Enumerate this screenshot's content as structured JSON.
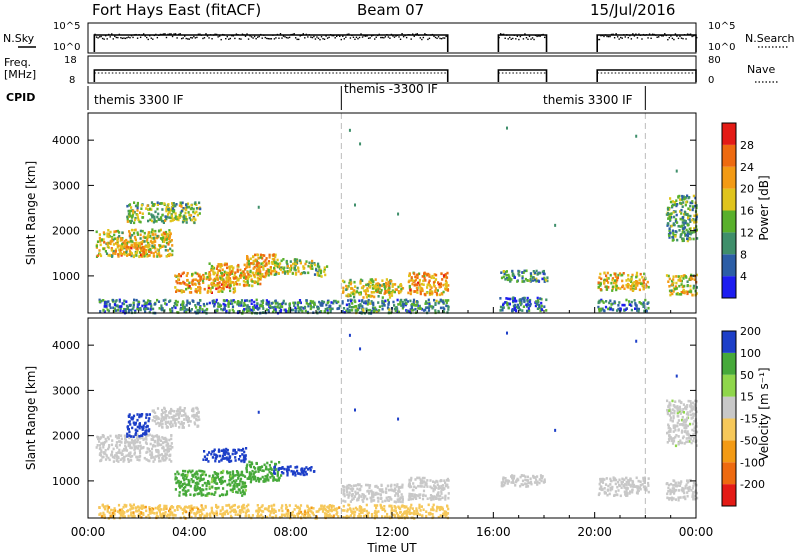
{
  "header": {
    "site": "Fort Hays East (fitACF)",
    "beam": "Beam 07",
    "date": "15/Jul/2016"
  },
  "strips": {
    "nsky_label": "N.Sky",
    "nsky_ticks": [
      "10^5",
      "10^0"
    ],
    "nsearch_label": "N.Search",
    "nsearch_ticks": [
      "10^5",
      "10^0"
    ],
    "freq_label": "Freq.",
    "freq_unit": "[MHz]",
    "freq_ticks": [
      "18",
      "8"
    ],
    "nave_label": "Nave",
    "nave_ticks": [
      "80",
      "0"
    ],
    "cpid_label": "CPID",
    "cpid_segments": [
      {
        "label": "themis 3300 IF",
        "start_h": 0.0,
        "end_h": 10.0
      },
      {
        "label": "themis -3300 IF",
        "start_h": 10.0,
        "end_h": 22.0
      },
      {
        "label": "themis 3300 IF",
        "start_h": 22.0,
        "end_h": 24.0
      }
    ],
    "cpid_boundaries_h": [
      10.0,
      22.0
    ],
    "data_segments_h": [
      [
        0.25,
        14.2
      ],
      [
        16.2,
        18.1
      ],
      [
        20.1,
        24.0
      ]
    ]
  },
  "chart_data": [
    {
      "type": "heatmap",
      "title": "",
      "quantity": "Power",
      "ylabel": "Slant Range [km]",
      "xlabel": "",
      "xlim_h": [
        0,
        24
      ],
      "ylim_km": [
        180,
        4600
      ],
      "yticks": [
        1000,
        2000,
        3000,
        4000
      ],
      "colorbar_label": "Power [dB]",
      "colorbar_ticks": [
        "4",
        "8",
        "12",
        "16",
        "20",
        "24",
        "28"
      ],
      "colorbar_colors": [
        "#1d1df0",
        "#2c5ea6",
        "#3f8f6b",
        "#59b02c",
        "#e0c41c",
        "#f39a14",
        "#ee6a10",
        "#e41b16"
      ],
      "regions": [
        {
          "t0": 0.3,
          "t1": 3.3,
          "r0": 1450,
          "r1": 2050,
          "v": 18
        },
        {
          "t0": 1.0,
          "t1": 2.4,
          "r0": 1450,
          "r1": 1750,
          "v": 22
        },
        {
          "t0": 1.5,
          "t1": 4.4,
          "r0": 2200,
          "r1": 2650,
          "v": 14
        },
        {
          "t0": 3.4,
          "t1": 5.8,
          "r0": 650,
          "r1": 1100,
          "v": 22
        },
        {
          "t0": 4.7,
          "t1": 6.8,
          "r0": 800,
          "r1": 1300,
          "v": 20
        },
        {
          "t0": 6.2,
          "t1": 7.4,
          "r0": 1000,
          "r1": 1500,
          "v": 21
        },
        {
          "t0": 7.3,
          "t1": 8.9,
          "r0": 1050,
          "r1": 1400,
          "v": 16
        },
        {
          "t0": 8.9,
          "t1": 9.4,
          "r0": 1000,
          "r1": 1300,
          "v": 13
        },
        {
          "t0": 0.4,
          "t1": 9.9,
          "r0": 200,
          "r1": 500,
          "v": 9
        },
        {
          "t0": 10.0,
          "t1": 12.0,
          "r0": 550,
          "r1": 950,
          "v": 17
        },
        {
          "t0": 11.2,
          "t1": 12.4,
          "r0": 650,
          "r1": 850,
          "v": 21
        },
        {
          "t0": 12.6,
          "t1": 14.2,
          "r0": 600,
          "r1": 1100,
          "v": 22
        },
        {
          "t0": 10.0,
          "t1": 14.2,
          "r0": 200,
          "r1": 500,
          "v": 10
        },
        {
          "t0": 16.2,
          "t1": 18.1,
          "r0": 900,
          "r1": 1150,
          "v": 10
        },
        {
          "t0": 16.2,
          "t1": 18.1,
          "r0": 250,
          "r1": 550,
          "v": 7
        },
        {
          "t0": 20.1,
          "t1": 22.1,
          "r0": 700,
          "r1": 1100,
          "v": 19
        },
        {
          "t0": 20.1,
          "t1": 22.1,
          "r0": 250,
          "r1": 500,
          "v": 9
        },
        {
          "t0": 22.8,
          "t1": 24.0,
          "r0": 600,
          "r1": 1050,
          "v": 18
        },
        {
          "t0": 22.8,
          "t1": 24.0,
          "r0": 1800,
          "r1": 2800,
          "v": 12
        }
      ]
    },
    {
      "type": "heatmap",
      "title": "",
      "quantity": "Velocity",
      "ylabel": "Slant Range [km]",
      "xlabel": "Time UT",
      "xlim_h": [
        0,
        24
      ],
      "ylim_km": [
        180,
        4600
      ],
      "yticks": [
        1000,
        2000,
        3000,
        4000
      ],
      "xticks": [
        "00:00",
        "04:00",
        "08:00",
        "12:00",
        "16:00",
        "20:00",
        "00:00"
      ],
      "colorbar_label": "Velocity [m s⁻¹]",
      "colorbar_ticks": [
        "-200",
        "-100",
        "-50",
        "-15",
        "15",
        "50",
        "100",
        "200"
      ],
      "colorbar_colors": [
        "#e41b16",
        "#ee6a10",
        "#f39a14",
        "#f6c85a",
        "#c8c8c8",
        "#8fd64b",
        "#46a93a",
        "#1d3fc8"
      ],
      "regions": [
        {
          "t0": 0.3,
          "t1": 3.3,
          "r0": 1450,
          "r1": 2050,
          "v": 0
        },
        {
          "t0": 1.5,
          "t1": 2.4,
          "r0": 2000,
          "r1": 2500,
          "v": 230
        },
        {
          "t0": 2.5,
          "t1": 4.4,
          "r0": 2200,
          "r1": 2650,
          "v": 0
        },
        {
          "t0": 3.4,
          "t1": 6.2,
          "r0": 700,
          "r1": 1250,
          "v": 60
        },
        {
          "t0": 4.5,
          "t1": 6.2,
          "r0": 1450,
          "r1": 1750,
          "v": 230
        },
        {
          "t0": 6.2,
          "t1": 7.6,
          "r0": 1000,
          "r1": 1450,
          "v": 70
        },
        {
          "t0": 7.3,
          "t1": 8.9,
          "r0": 1150,
          "r1": 1350,
          "v": 210
        },
        {
          "t0": 0.4,
          "t1": 9.9,
          "r0": 200,
          "r1": 500,
          "v": -40
        },
        {
          "t0": 10.0,
          "t1": 12.4,
          "r0": 550,
          "r1": 950,
          "v": 0
        },
        {
          "t0": 12.6,
          "t1": 14.2,
          "r0": 600,
          "r1": 1100,
          "v": 0
        },
        {
          "t0": 10.0,
          "t1": 14.2,
          "r0": 200,
          "r1": 500,
          "v": -30
        },
        {
          "t0": 16.2,
          "t1": 18.1,
          "r0": 900,
          "r1": 1150,
          "v": 0
        },
        {
          "t0": 20.1,
          "t1": 22.1,
          "r0": 700,
          "r1": 1100,
          "v": 0
        },
        {
          "t0": 22.8,
          "t1": 24.0,
          "r0": 600,
          "r1": 1050,
          "v": 0
        },
        {
          "t0": 22.8,
          "t1": 24.0,
          "r0": 1800,
          "r1": 2800,
          "v": 5
        }
      ]
    }
  ]
}
